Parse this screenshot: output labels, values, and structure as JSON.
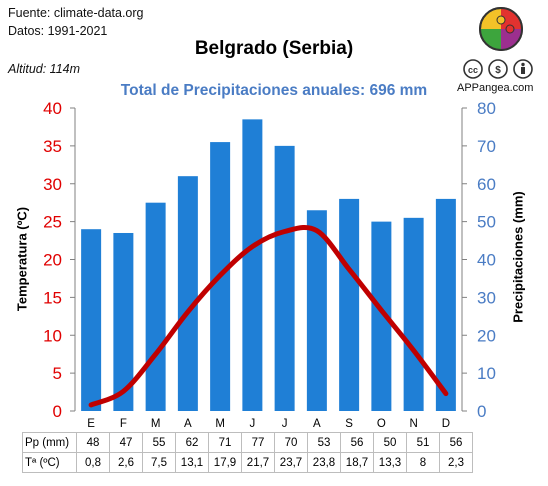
{
  "header": {
    "source": "Fuente: climate-data.org",
    "period": "Datos: 1991-2021",
    "title": "Belgrado (Serbia)",
    "altitude": "Altitud: 114m",
    "subtitle": "Total de Precipitaciones anuales: 696 mm",
    "brand": "APPangea.com"
  },
  "icons": {
    "logo": "appangea-puzzle-logo",
    "license": "creative-commons-by-icons"
  },
  "colors": {
    "temperature": "#c00000",
    "precipitation": "#1f7fd6",
    "left_axis": "#e00000",
    "right_axis": "#4a7cc4"
  },
  "chart_data": {
    "type": "bar",
    "categories": [
      "E",
      "F",
      "M",
      "A",
      "M",
      "J",
      "J",
      "A",
      "S",
      "O",
      "N",
      "D"
    ],
    "ylabel": "Temperatura (ºC)",
    "y2label": "Precipitaciones (mm)",
    "ylim": [
      0,
      40
    ],
    "y2lim": [
      0,
      80
    ],
    "yticks": [
      0,
      5,
      10,
      15,
      20,
      25,
      30,
      35,
      40
    ],
    "y2ticks": [
      0,
      10,
      20,
      30,
      40,
      50,
      60,
      70,
      80
    ],
    "grid": false,
    "series": [
      {
        "name": "Pp (mm)",
        "type": "bar",
        "axis": "right",
        "values": [
          48,
          47,
          55,
          62,
          71,
          77,
          70,
          53,
          56,
          50,
          51,
          56
        ]
      },
      {
        "name": "Tª (ºC)",
        "type": "line",
        "axis": "left",
        "values": [
          0.8,
          2.6,
          7.5,
          13.1,
          17.9,
          21.7,
          23.7,
          23.8,
          18.7,
          13.3,
          8,
          2.3
        ]
      }
    ]
  },
  "table": {
    "rows": [
      {
        "label": "Pp (mm)",
        "cells": [
          "48",
          "47",
          "55",
          "62",
          "71",
          "77",
          "70",
          "53",
          "56",
          "50",
          "51",
          "56"
        ]
      },
      {
        "label": "Tª (ºC)",
        "cells": [
          "0,8",
          "2,6",
          "7,5",
          "13,1",
          "17,9",
          "21,7",
          "23,7",
          "23,8",
          "18,7",
          "13,3",
          "8",
          "2,3"
        ]
      }
    ]
  }
}
